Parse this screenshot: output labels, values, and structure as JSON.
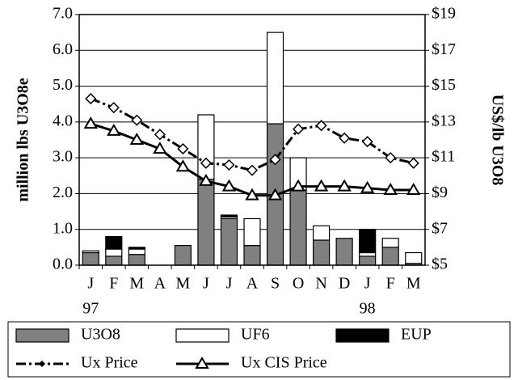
{
  "chart_data": {
    "type": "bar",
    "y_label": "million lbs U3O8e",
    "y2_label": "US$/lb U3O8",
    "categories": [
      "J",
      "F",
      "M",
      "A",
      "M",
      "J",
      "J",
      "A",
      "S",
      "O",
      "N",
      "D",
      "J",
      "F",
      "M"
    ],
    "annotations": [
      "97",
      "98"
    ],
    "ylim": [
      0,
      7
    ],
    "yticks": [
      {
        "value": 0,
        "label": "0.0"
      },
      {
        "value": 1,
        "label": "1.0"
      },
      {
        "value": 2,
        "label": "2.0"
      },
      {
        "value": 3,
        "label": "3.0"
      },
      {
        "value": 4,
        "label": "4.0"
      },
      {
        "value": 5,
        "label": "5.0"
      },
      {
        "value": 6,
        "label": "6.0"
      },
      {
        "value": 7,
        "label": "7.0"
      }
    ],
    "y2lim": [
      5,
      19
    ],
    "y2ticks": [
      {
        "value": 5,
        "label": "$5"
      },
      {
        "value": 7,
        "label": "$7"
      },
      {
        "value": 9,
        "label": "$9"
      },
      {
        "value": 11,
        "label": "$11"
      },
      {
        "value": 13,
        "label": "$13"
      },
      {
        "value": 15,
        "label": "$15"
      },
      {
        "value": 17,
        "label": "$17"
      },
      {
        "value": 19,
        "label": "$19"
      }
    ],
    "grid": true,
    "stacked": true,
    "series": [
      {
        "name": "U3O8",
        "type": "bar",
        "color": "#808080",
        "values": [
          0.35,
          0.25,
          0.3,
          0,
          0.55,
          2.4,
          1.3,
          0.55,
          3.95,
          2.1,
          0.7,
          0.75,
          0.25,
          0.5,
          0.05
        ]
      },
      {
        "name": "UF6",
        "type": "bar",
        "color": "#ffffff",
        "values": [
          0.05,
          0.2,
          0.15,
          0,
          0,
          1.8,
          0.05,
          0.75,
          2.55,
          0.9,
          0.4,
          0,
          0.1,
          0.25,
          0.3
        ]
      },
      {
        "name": "EUP",
        "type": "bar",
        "color": "#000000",
        "values": [
          0,
          0.35,
          0.05,
          0,
          0,
          0,
          0.05,
          0,
          0,
          0,
          0,
          0,
          0.65,
          0,
          0
        ]
      },
      {
        "name": "Ux Price",
        "type": "line",
        "axis": "y2",
        "color": "#000000",
        "marker": "diamond",
        "values": [
          14.3,
          13.8,
          13.1,
          12.3,
          11.5,
          10.7,
          10.6,
          10.3,
          10.9,
          12.6,
          12.8,
          12.1,
          11.9,
          11.0,
          10.7
        ]
      },
      {
        "name": "Ux CIS Price",
        "type": "line",
        "axis": "y2",
        "color": "#000000",
        "marker": "triangle",
        "values": [
          12.9,
          12.5,
          12.0,
          11.5,
          10.5,
          9.7,
          9.4,
          8.9,
          8.9,
          9.4,
          9.4,
          9.4,
          9.3,
          9.2,
          9.2
        ]
      }
    ]
  }
}
